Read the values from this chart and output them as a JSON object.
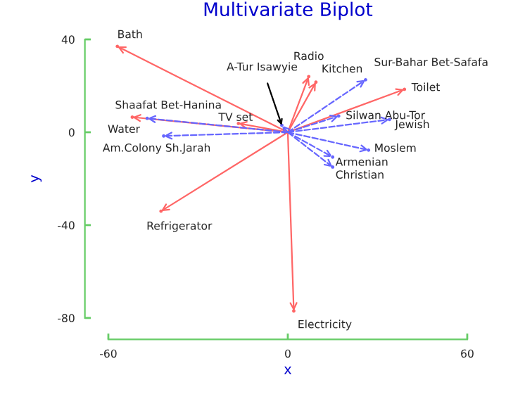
{
  "chart_data": {
    "type": "scatter",
    "title": "Multivariate Biplot",
    "xlabel": "x",
    "ylabel": "y",
    "xlim": [
      -60,
      60
    ],
    "ylim": [
      -80,
      40
    ],
    "xticks": [
      -60,
      0,
      60
    ],
    "yticks": [
      -80,
      -40,
      0,
      40
    ],
    "grid": false,
    "legend": false,
    "series": [
      {
        "color": "#ff6666",
        "line_style": "solid",
        "x": [
          -57,
          -16.5,
          -52,
          7,
          9.4,
          39,
          -42.4,
          2
        ],
        "values": [
          37,
          3.8,
          6.5,
          24,
          21.6,
          18.5,
          -34,
          -77
        ]
      },
      {
        "color": "#6666ff",
        "line_style": "dashed",
        "x": [
          -2,
          26,
          17,
          34,
          27,
          15,
          15,
          -47,
          -41.5
        ],
        "values": [
          3,
          22.6,
          7,
          5.5,
          -7.7,
          -10.7,
          -15,
          6,
          -1.6
        ]
      }
    ],
    "annotations": [
      {
        "text": "Bath",
        "x": -57,
        "y": 37
      },
      {
        "text": "A-Tur Isawyie",
        "x": -2,
        "y": 3
      },
      {
        "text": "Radio",
        "x": 7,
        "y": 24
      },
      {
        "text": "Kitchen",
        "x": 9.4,
        "y": 21.6
      },
      {
        "text": "Sur-Bahar Bet-Safafa",
        "x": 26,
        "y": 22.6
      },
      {
        "text": "Toilet",
        "x": 39,
        "y": 18.5
      },
      {
        "text": "Silwan Abu-Tor",
        "x": 17,
        "y": 7
      },
      {
        "text": "Jewish",
        "x": 34,
        "y": 5.5
      },
      {
        "text": "Moslem",
        "x": 27,
        "y": -7.7
      },
      {
        "text": "Armenian",
        "x": 15,
        "y": -10.7
      },
      {
        "text": "Christian",
        "x": 15,
        "y": -15
      },
      {
        "text": "Shaafat Bet-Hanina",
        "x": -47,
        "y": 6
      },
      {
        "text": "TV set",
        "x": -16.5,
        "y": 3.8
      },
      {
        "text": "Water",
        "x": -52,
        "y": 6.5
      },
      {
        "text": "Am.Colony Sh.Jarah",
        "x": -41.5,
        "y": -1.6
      },
      {
        "text": "Refrigerator",
        "x": -42.4,
        "y": -34
      },
      {
        "text": "Electricity",
        "x": 2,
        "y": -77
      }
    ]
  }
}
